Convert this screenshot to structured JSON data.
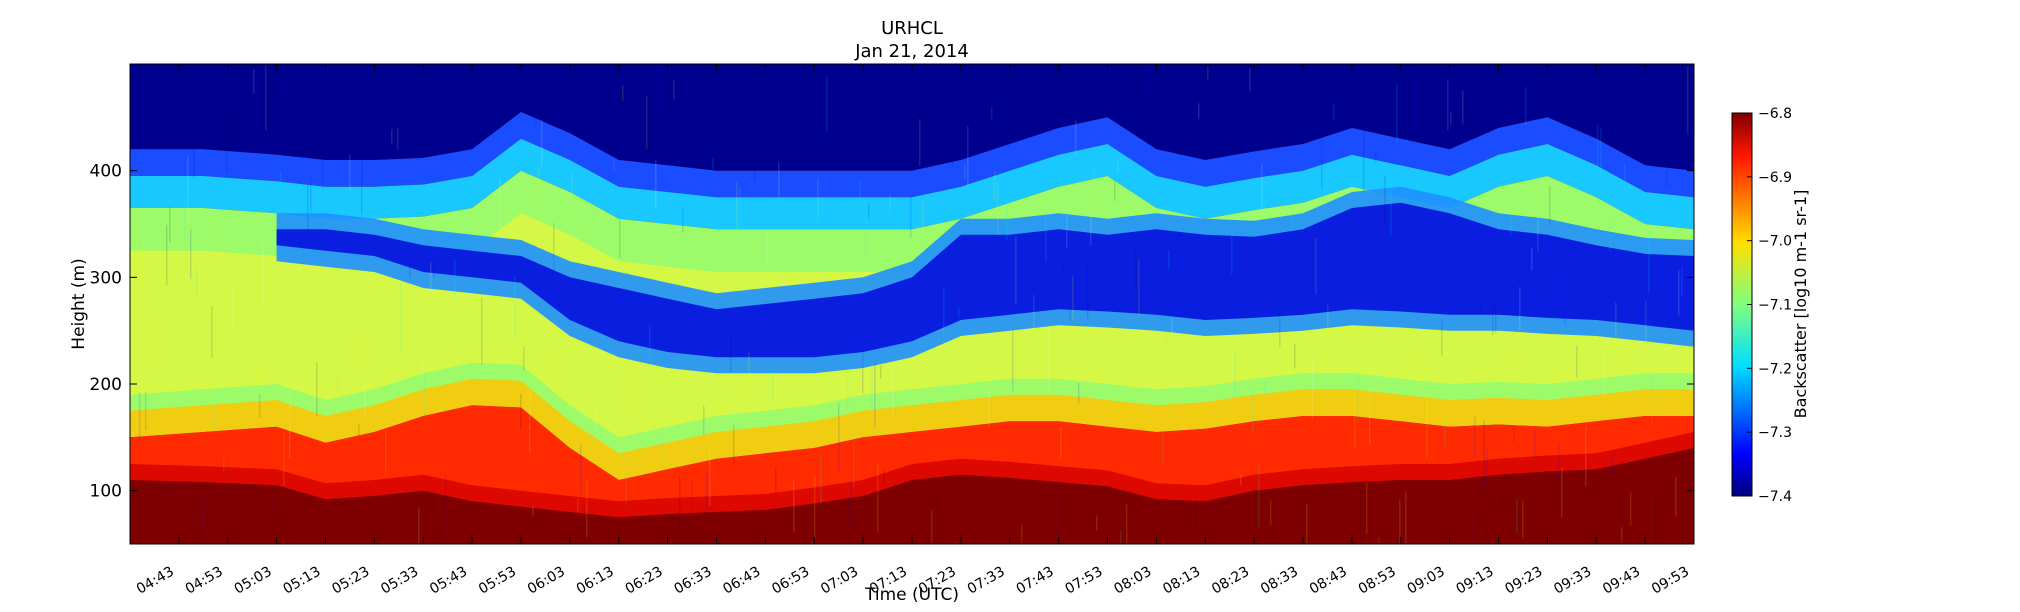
{
  "chart_data": {
    "type": "heatmap",
    "title": "URHCL",
    "subtitle": "Jan 21, 2014",
    "xlabel": "Time (UTC)",
    "ylabel": "Height (m)",
    "x_ticks": [
      "04:43",
      "04:53",
      "05:03",
      "05:13",
      "05:23",
      "05:33",
      "05:43",
      "05:53",
      "06:03",
      "06:13",
      "06:23",
      "06:33",
      "06:43",
      "06:53",
      "07:03",
      "07:13",
      "07:23",
      "07:33",
      "07:43",
      "07:53",
      "08:03",
      "08:13",
      "08:23",
      "08:33",
      "08:43",
      "08:53",
      "09:03",
      "09:13",
      "09:23",
      "09:33",
      "09:43",
      "09:53"
    ],
    "x_range": [
      "04:33",
      "09:53"
    ],
    "y_ticks": [
      100,
      200,
      300,
      400
    ],
    "ylim": [
      50,
      500
    ],
    "colorbar": {
      "label": "Backscatter [log10 m-1 sr-1]",
      "ticks": [
        -6.8,
        -6.9,
        -7.0,
        -7.1,
        -7.2,
        -7.3,
        -7.4
      ],
      "range": [
        -7.4,
        -6.8
      ],
      "colormap": "jet"
    },
    "grid": false,
    "layers": {
      "time": [
        "04:33",
        "04:48",
        "05:03",
        "05:13",
        "05:23",
        "05:33",
        "05:43",
        "05:53",
        "06:03",
        "06:13",
        "06:23",
        "06:33",
        "06:43",
        "06:53",
        "07:03",
        "07:13",
        "07:23",
        "07:33",
        "07:43",
        "07:53",
        "08:03",
        "08:13",
        "08:23",
        "08:33",
        "08:43",
        "08:53",
        "09:03",
        "09:13",
        "09:23",
        "09:33",
        "09:43",
        "09:53"
      ],
      "upper_layer_top_m": [
        420,
        420,
        415,
        410,
        410,
        412,
        420,
        455,
        435,
        410,
        405,
        400,
        400,
        400,
        400,
        400,
        410,
        425,
        440,
        450,
        420,
        410,
        418,
        425,
        440,
        430,
        420,
        440,
        450,
        430,
        405,
        400
      ],
      "clear_layer_top_m": [
        0,
        0,
        345,
        345,
        340,
        330,
        325,
        320,
        300,
        290,
        280,
        270,
        275,
        280,
        285,
        300,
        340,
        340,
        345,
        340,
        345,
        340,
        338,
        345,
        365,
        370,
        360,
        345,
        340,
        330,
        322,
        320
      ],
      "clear_layer_bottom_m": [
        0,
        0,
        330,
        325,
        320,
        305,
        300,
        295,
        260,
        240,
        230,
        225,
        225,
        225,
        230,
        240,
        260,
        265,
        270,
        268,
        265,
        260,
        262,
        265,
        270,
        268,
        265,
        265,
        262,
        260,
        255,
        250
      ],
      "dense_layer_top_m": [
        150,
        155,
        160,
        145,
        155,
        170,
        180,
        178,
        140,
        110,
        120,
        130,
        135,
        140,
        150,
        155,
        160,
        165,
        165,
        160,
        155,
        158,
        165,
        170,
        170,
        165,
        160,
        162,
        160,
        165,
        170,
        170
      ],
      "saturated_top_m": [
        110,
        108,
        105,
        92,
        95,
        100,
        90,
        85,
        80,
        75,
        78,
        80,
        82,
        88,
        95,
        110,
        115,
        112,
        108,
        104,
        92,
        90,
        100,
        105,
        108,
        110,
        110,
        115,
        118,
        120,
        130,
        140
      ]
    }
  }
}
